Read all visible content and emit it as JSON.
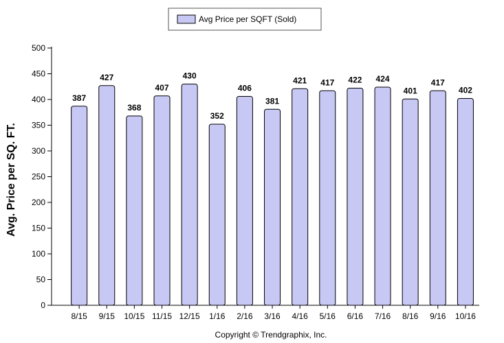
{
  "chart_data": {
    "type": "bar",
    "title": "",
    "xlabel": "",
    "ylabel": "Avg. Price per SQ. FT.",
    "categories": [
      "8/15",
      "9/15",
      "10/15",
      "11/15",
      "12/15",
      "1/16",
      "2/16",
      "3/16",
      "4/16",
      "5/16",
      "6/16",
      "7/16",
      "8/16",
      "9/16",
      "10/16"
    ],
    "series": [
      {
        "name": "Avg Price per SQFT (Sold)",
        "values": [
          387,
          427,
          368,
          407,
          430,
          352,
          406,
          381,
          421,
          417,
          422,
          424,
          401,
          417,
          402
        ]
      }
    ],
    "ylim": [
      0,
      500
    ],
    "yticks": [
      0,
      50,
      100,
      150,
      200,
      250,
      300,
      350,
      400,
      450,
      500
    ],
    "grid": false,
    "legend": "top-center",
    "colors": {
      "bar_fill": "#c8c8f5",
      "bar_stroke": "#000000"
    }
  },
  "footer": {
    "copyright": "Copyright © Trendgraphix, Inc."
  }
}
